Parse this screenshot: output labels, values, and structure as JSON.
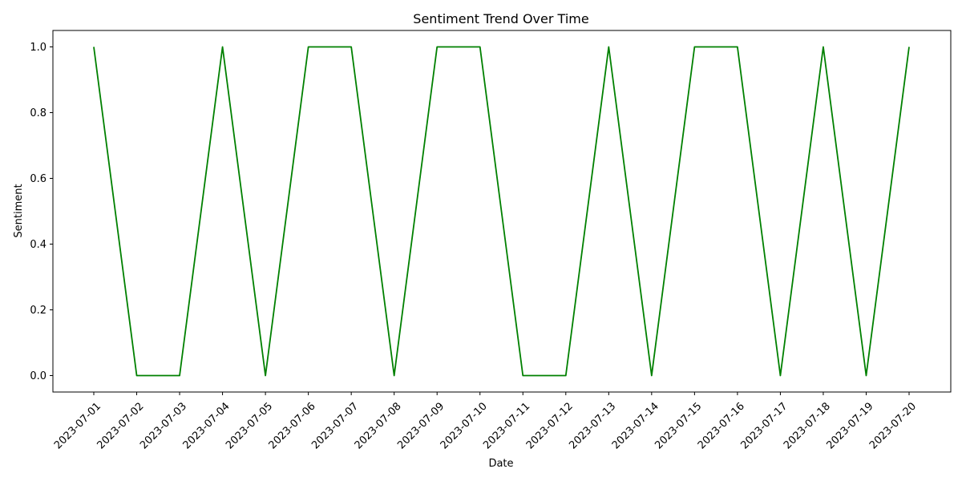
{
  "chart_data": {
    "type": "line",
    "title": "Sentiment Trend Over Time",
    "xlabel": "Date",
    "ylabel": "Sentiment",
    "x": [
      "2023-07-01",
      "2023-07-02",
      "2023-07-03",
      "2023-07-04",
      "2023-07-05",
      "2023-07-06",
      "2023-07-07",
      "2023-07-08",
      "2023-07-09",
      "2023-07-10",
      "2023-07-11",
      "2023-07-12",
      "2023-07-13",
      "2023-07-14",
      "2023-07-15",
      "2023-07-16",
      "2023-07-17",
      "2023-07-18",
      "2023-07-19",
      "2023-07-20"
    ],
    "series": [
      {
        "values": [
          1,
          0,
          0,
          1,
          0,
          1,
          1,
          0,
          1,
          1,
          0,
          0,
          1,
          0,
          1,
          1,
          0,
          1,
          0,
          1
        ],
        "color": "#008000"
      }
    ],
    "yticks": [
      "0.0",
      "0.2",
      "0.4",
      "0.6",
      "0.8",
      "1.0"
    ],
    "ylim": [
      -0.05,
      1.05
    ],
    "grid": false,
    "legend": "none"
  }
}
